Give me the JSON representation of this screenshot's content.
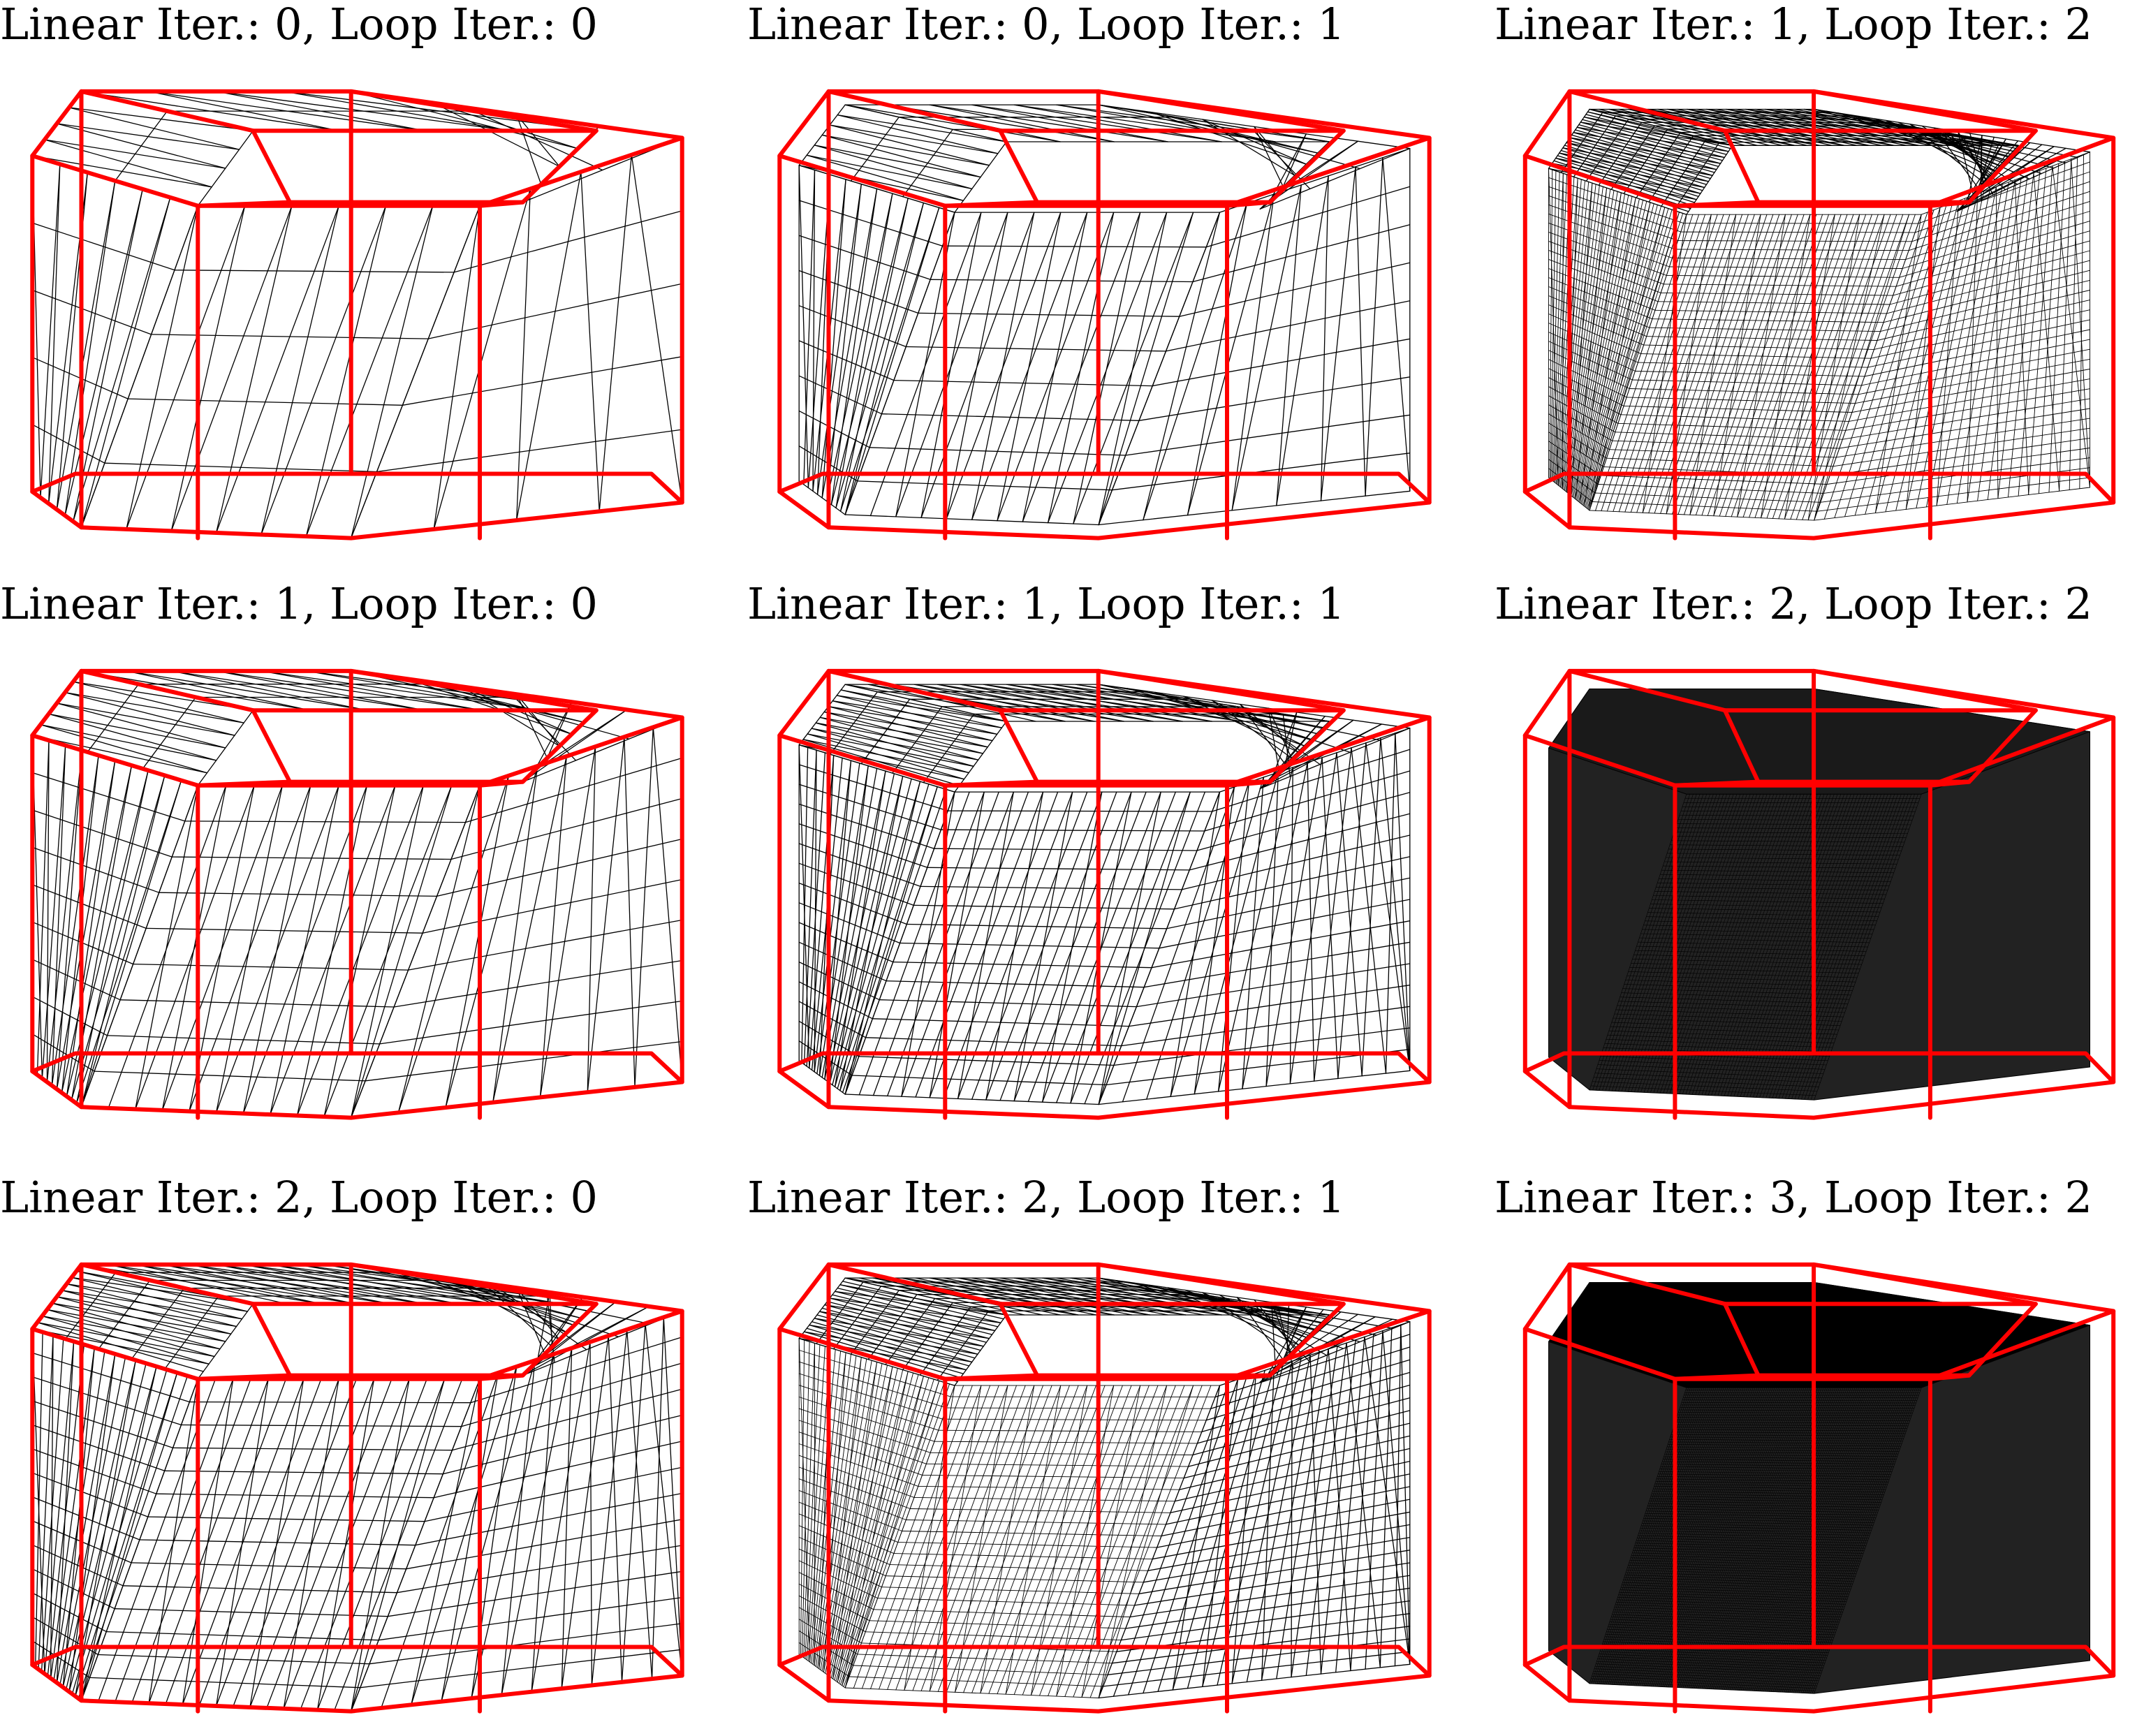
{
  "figure": {
    "panels": [
      {
        "title": "Linear Iter.: 0, Loop Iter.: 0",
        "density": 6,
        "rows": 0
      },
      {
        "title": "Linear Iter.: 0, Loop Iter.: 1",
        "density": 10,
        "rows": 1
      },
      {
        "title": "Linear Iter.: 1, Loop Iter.: 2",
        "density": 38,
        "rows": 2
      },
      {
        "title": "Linear Iter.: 1, Loop Iter.: 0",
        "density": 10,
        "rows": 0
      },
      {
        "title": "Linear Iter.: 1, Loop Iter.: 1",
        "density": 18,
        "rows": 1
      },
      {
        "title": "Linear Iter.: 2, Loop Iter.: 2",
        "density": 70,
        "rows": 2
      },
      {
        "title": "Linear Iter.: 2, Loop Iter.: 0",
        "density": 16,
        "rows": 0
      },
      {
        "title": "Linear Iter.: 2, Loop Iter.: 1",
        "density": 30,
        "rows": 1
      },
      {
        "title": "Linear Iter.: 3, Loop Iter.: 2",
        "density": 140,
        "rows": 2
      }
    ],
    "colors": {
      "cage": "#ff0000",
      "mesh": "#000000",
      "background": "#ffffff"
    }
  }
}
